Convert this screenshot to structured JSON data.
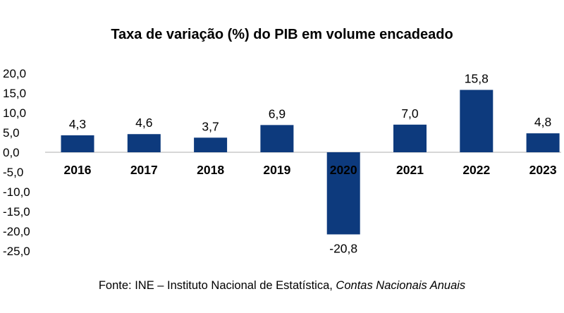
{
  "chart_data": {
    "type": "bar",
    "title": "Taxa de variação (%) do PIB em volume encadeado",
    "categories": [
      "2016",
      "2017",
      "2018",
      "2019",
      "2020",
      "2021",
      "2022",
      "2023"
    ],
    "values": [
      4.3,
      4.6,
      3.7,
      6.9,
      -20.8,
      7.0,
      15.8,
      4.8
    ],
    "value_labels": [
      "4,3",
      "4,6",
      "3,7",
      "6,9",
      "-20,8",
      "7,0",
      "15,8",
      "4,8"
    ],
    "ylim": [
      -25,
      20
    ],
    "yticks": [
      20,
      15,
      10,
      5,
      0,
      -5,
      -10,
      -15,
      -20,
      -25
    ],
    "ytick_labels": [
      "20,0",
      "15,0",
      "10,0",
      "5,0",
      "0,0",
      "-5,0",
      "-10,0",
      "-15,0",
      "-20,0",
      "-25,0"
    ],
    "xlabel": "",
    "ylabel": "",
    "grid": false,
    "bar_color": "#0d3a7d"
  },
  "source": {
    "prefix": "Fonte: INE – Instituto Nacional de Estatística, ",
    "publication": "Contas Nacionais Anuais"
  }
}
